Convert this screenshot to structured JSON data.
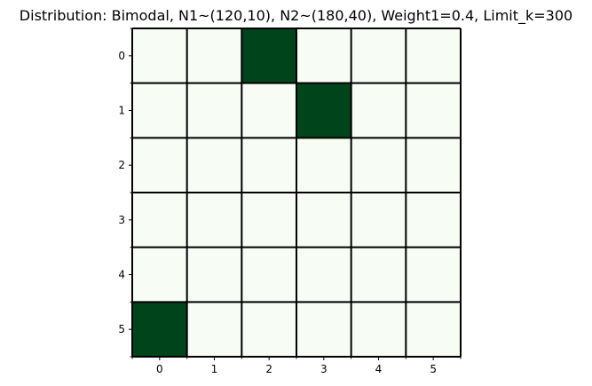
{
  "chart_data": {
    "type": "heatmap",
    "title": "Distribution: Bimodal, N1~(120,10), N2~(180,40), Weight1=0.4, Limit_k=300",
    "xlabel": "",
    "ylabel": "",
    "x_categories": [
      "0",
      "1",
      "2",
      "3",
      "4",
      "5"
    ],
    "y_categories": [
      "0",
      "1",
      "2",
      "3",
      "4",
      "5"
    ],
    "values": [
      [
        0,
        0,
        1,
        0,
        0,
        0
      ],
      [
        0,
        0,
        0,
        1,
        0,
        0
      ],
      [
        0,
        0,
        0,
        0,
        0,
        0
      ],
      [
        0,
        0,
        0,
        0,
        0,
        0
      ],
      [
        0,
        0,
        0,
        0,
        0,
        0
      ],
      [
        1,
        0,
        0,
        0,
        0,
        0
      ]
    ],
    "colormap": "Greens",
    "colors": {
      "low": "#f7fcf5",
      "high": "#00441b",
      "grid": "#000000"
    },
    "grid": true,
    "legend": "none"
  }
}
